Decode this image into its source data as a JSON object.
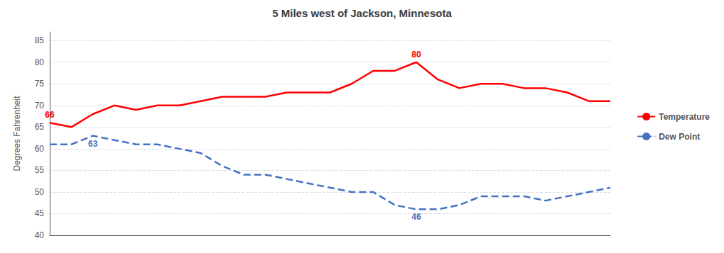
{
  "chart_data": {
    "type": "line",
    "title": "5 Miles west of Jackson, Minnesota",
    "ylabel": "Degrees Fahrenheit",
    "categories": [
      null,
      null,
      null,
      null,
      null,
      null,
      null,
      null,
      null,
      null,
      null,
      null,
      null,
      null,
      null,
      null,
      null,
      null,
      null,
      null,
      null,
      null,
      null,
      null,
      null,
      null,
      null
    ],
    "series": [
      {
        "name": "Temperature",
        "color": "#ff0000",
        "line_style": "solid",
        "values": [
          66,
          65,
          68,
          70,
          69,
          70,
          70,
          71,
          72,
          72,
          72,
          73,
          73,
          73,
          75,
          78,
          78,
          80,
          76,
          74,
          75,
          75,
          74,
          74,
          73,
          71,
          71
        ]
      },
      {
        "name": "Dew Point",
        "color": "#4472c4",
        "line_style": "dashed",
        "values": [
          61,
          61,
          63,
          62,
          61,
          61,
          60,
          59,
          56,
          54,
          54,
          53,
          52,
          51,
          50,
          50,
          47,
          46,
          46,
          47,
          49,
          49,
          49,
          48,
          49,
          50,
          51
        ]
      }
    ],
    "annotations": [
      {
        "text": "66",
        "series": "Temperature",
        "x": 0,
        "y": 66
      },
      {
        "text": "80",
        "series": "Temperature",
        "x": 17,
        "y": 80
      },
      {
        "text": "63",
        "series": "Dew Point",
        "x": 2,
        "y": 63
      },
      {
        "text": "46",
        "series": "Dew Point",
        "x": 17,
        "y": 46
      }
    ],
    "ylim": [
      40,
      87
    ],
    "yticks": [
      40,
      45,
      50,
      55,
      60,
      65,
      70,
      75,
      80,
      85
    ],
    "grid": true,
    "legend": "right",
    "tick_labels": "y"
  }
}
